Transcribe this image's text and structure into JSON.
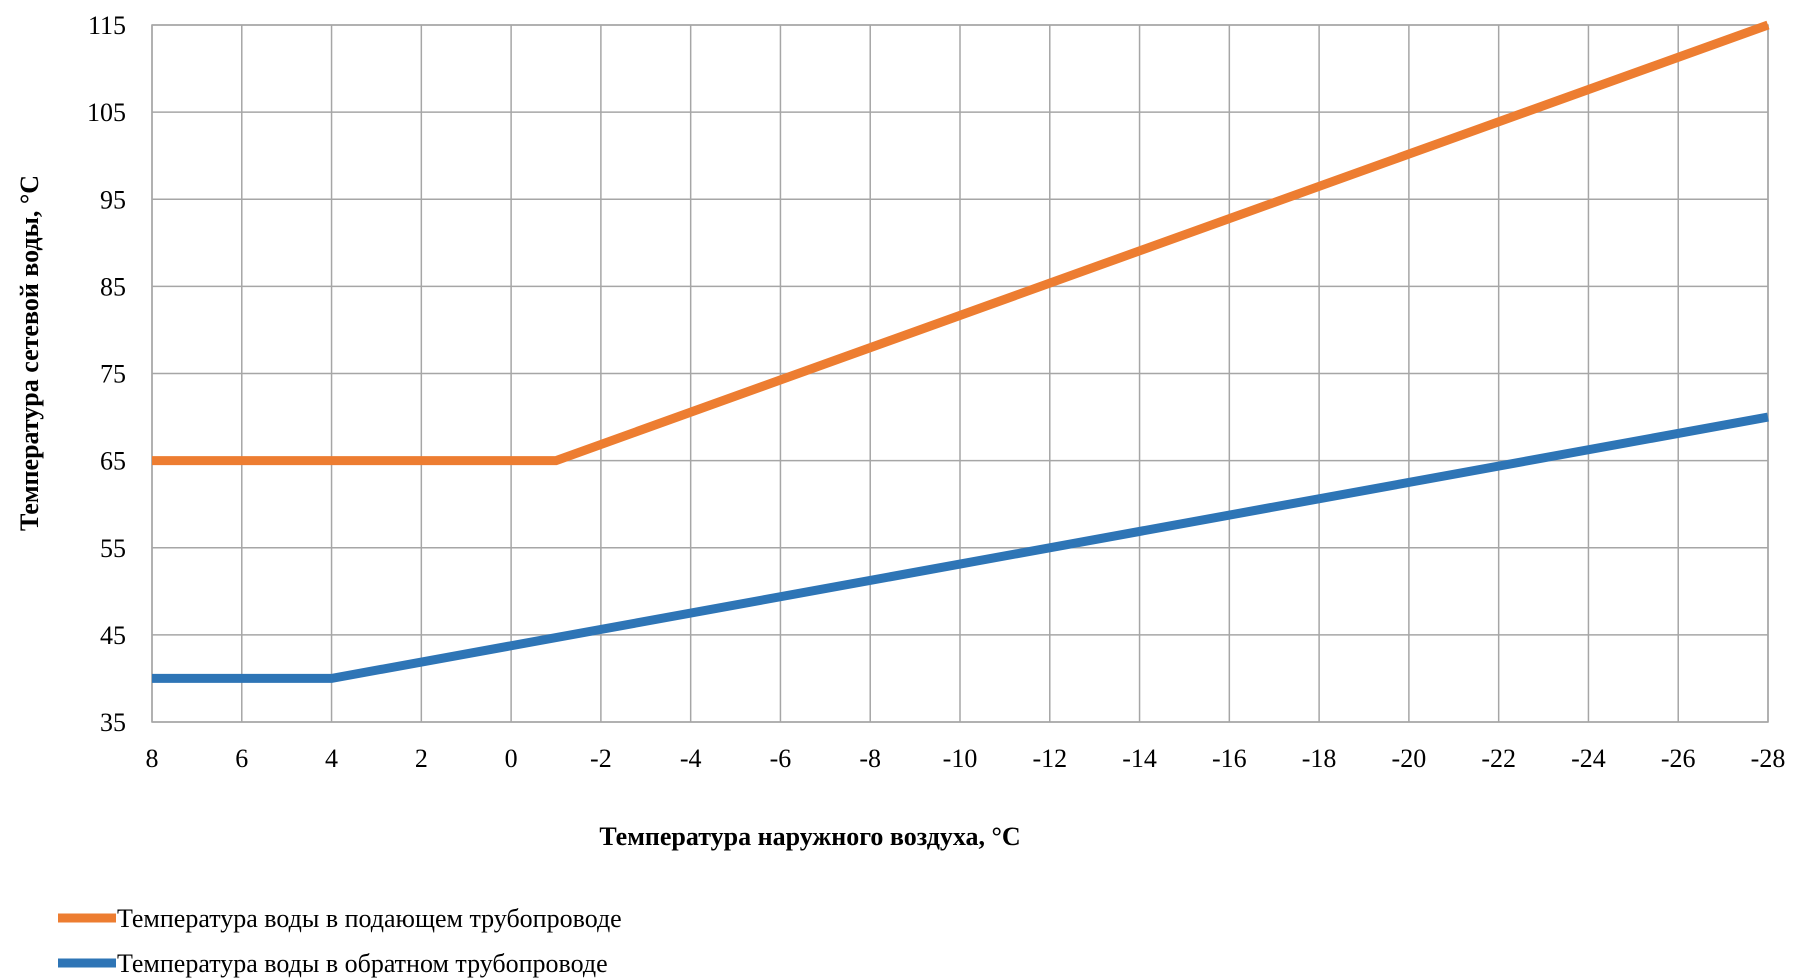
{
  "chart_data": {
    "type": "line",
    "title": "",
    "xlabel": "Температура наружного воздуха, °С",
    "ylabel": "Температура сетевой воды, °С",
    "x_ticks": [
      8,
      6,
      4,
      2,
      0,
      -2,
      -4,
      -6,
      -8,
      -10,
      -12,
      -14,
      -16,
      -18,
      -20,
      -22,
      -24,
      -26,
      -28
    ],
    "y_ticks": [
      35,
      45,
      55,
      65,
      75,
      85,
      95,
      105,
      115
    ],
    "xlim": [
      8,
      -28
    ],
    "ylim": [
      35,
      115
    ],
    "grid": true,
    "legend_position": "bottom-left",
    "series": [
      {
        "name": "Температура воды в подающем трубопроводе",
        "color": "#ED7D31",
        "x": [
          8,
          -1,
          -28
        ],
        "y": [
          65,
          65,
          115
        ]
      },
      {
        "name": "Температура воды в обратном трубопроводе",
        "color": "#2E75B6",
        "x": [
          8,
          4,
          -28
        ],
        "y": [
          40,
          40,
          70
        ]
      }
    ]
  }
}
